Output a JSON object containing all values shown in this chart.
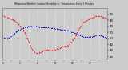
{
  "title": "Milwaukee Weather Outdoor Humidity vs. Temperature Every 5 Minutes",
  "bg_color": "#cccccc",
  "plot_bg_color": "#cccccc",
  "grid_color": "#ffffff",
  "red_line_color": "#ff0000",
  "blue_line_color": "#0000cc",
  "ylim": [
    15,
    100
  ],
  "xlim": [
    0,
    287
  ],
  "temp_x": [
    0,
    4,
    8,
    12,
    16,
    20,
    24,
    28,
    32,
    36,
    40,
    44,
    48,
    52,
    56,
    60,
    64,
    68,
    72,
    76,
    80,
    84,
    88,
    92,
    96,
    100,
    104,
    108,
    112,
    116,
    120,
    124,
    128,
    132,
    136,
    140,
    144,
    148,
    152,
    156,
    160,
    164,
    168,
    172,
    176,
    180,
    184,
    188,
    192,
    196,
    200,
    204,
    208,
    212,
    216,
    220,
    224,
    228,
    232,
    236,
    240,
    244,
    248,
    252,
    256,
    260,
    264,
    268,
    272,
    276,
    280,
    284,
    287
  ],
  "temp_y": [
    88,
    87,
    86,
    85,
    84,
    83,
    82,
    81,
    80,
    78,
    76,
    74,
    71,
    68,
    64,
    60,
    55,
    50,
    44,
    38,
    33,
    29,
    27,
    26,
    25,
    26,
    27,
    28,
    29,
    30,
    30,
    31,
    31,
    30,
    30,
    30,
    31,
    32,
    33,
    34,
    35,
    36,
    36,
    37,
    37,
    38,
    40,
    43,
    47,
    51,
    55,
    60,
    64,
    68,
    72,
    76,
    78,
    79,
    80,
    82,
    83,
    84,
    85,
    86,
    87,
    87,
    87,
    87,
    86,
    85,
    84,
    83,
    82
  ],
  "hum_x": [
    0,
    4,
    8,
    12,
    16,
    20,
    24,
    28,
    32,
    36,
    40,
    44,
    48,
    52,
    56,
    60,
    64,
    68,
    72,
    76,
    80,
    84,
    88,
    92,
    96,
    100,
    104,
    108,
    112,
    116,
    120,
    124,
    128,
    132,
    136,
    140,
    144,
    148,
    152,
    156,
    160,
    164,
    168,
    172,
    176,
    180,
    184,
    188,
    192,
    196,
    200,
    204,
    208,
    212,
    216,
    220,
    224,
    228,
    232,
    236,
    240,
    244,
    248,
    252,
    256,
    260,
    264,
    268,
    272,
    276,
    280,
    284,
    287
  ],
  "hum_y": [
    52,
    51,
    50,
    50,
    51,
    52,
    54,
    56,
    58,
    60,
    62,
    64,
    65,
    66,
    67,
    68,
    69,
    69,
    70,
    70,
    70,
    70,
    70,
    70,
    70,
    69,
    69,
    68,
    68,
    68,
    68,
    68,
    68,
    67,
    67,
    67,
    66,
    66,
    66,
    65,
    65,
    64,
    64,
    63,
    63,
    63,
    62,
    61,
    60,
    59,
    58,
    57,
    56,
    55,
    54,
    53,
    52,
    52,
    52,
    53,
    53,
    53,
    53,
    54,
    55,
    55,
    55,
    55,
    54,
    53,
    52,
    51,
    50
  ],
  "right_yticks": [
    20,
    30,
    40,
    50,
    60,
    70,
    80,
    90
  ],
  "xtick_every": 24
}
